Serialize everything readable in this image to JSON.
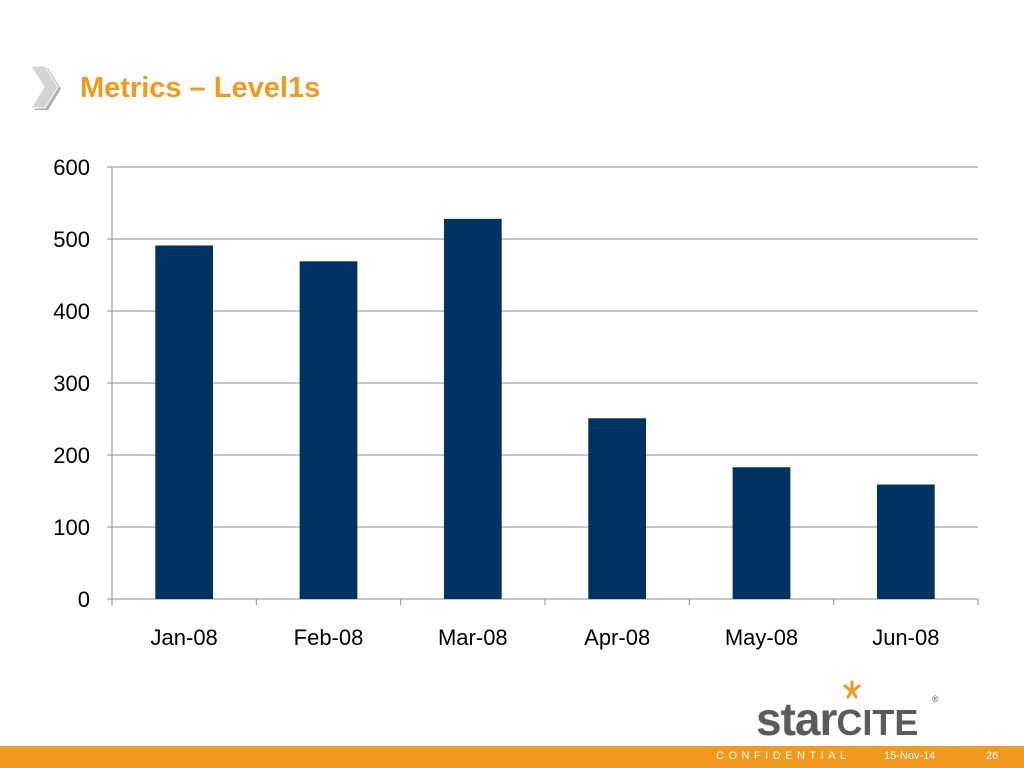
{
  "slide": {
    "title": "Metrics – Level1s"
  },
  "logo": {
    "text_lower": "star",
    "text_upper": "CITE",
    "registered": "®",
    "mark_color": "#f39a1e",
    "text_color": "#5a5b5d"
  },
  "footer": {
    "confidential": "CONFIDENTIAL",
    "date": "15-Nov-14",
    "page_number": "26",
    "bar_color": "#f39a1e"
  },
  "colors": {
    "accent": "#f39a1e",
    "bar": "#003263",
    "gridline": "#8c8c8c"
  },
  "chart_data": {
    "type": "bar",
    "title": "",
    "xlabel": "",
    "ylabel": "",
    "categories": [
      "Jan-08",
      "Feb-08",
      "Mar-08",
      "Apr-08",
      "May-08",
      "Jun-08"
    ],
    "values": [
      491,
      469,
      528,
      251,
      183,
      159
    ],
    "ylim": [
      0,
      600
    ],
    "yticks": [
      0,
      100,
      200,
      300,
      400,
      500,
      600
    ],
    "grid": true,
    "legend": "none"
  }
}
